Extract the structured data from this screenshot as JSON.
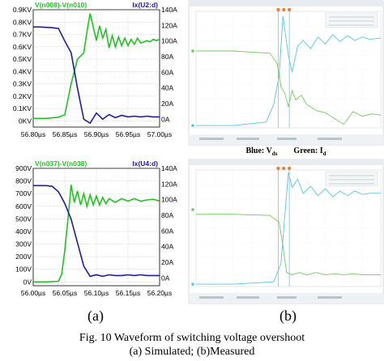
{
  "figure": {
    "sub_a": "(a)",
    "sub_b": "(b)",
    "caption_title": "Fig. 10 Waveform of switching voltage overshoot",
    "caption_sub": "(a) Simulated; (b)Measured",
    "legend_blue_prefix": "Blue: V",
    "legend_blue_sub": "ds",
    "legend_green_prefix": "Green: I",
    "legend_green_sub": "d"
  },
  "colors": {
    "voltage_green": "#1fc31f",
    "current_blue": "#1c1ca8",
    "scope_cyan": "#52c6e8",
    "scope_green": "#74c95a",
    "grid": "#999999"
  },
  "chart_data": [
    {
      "type": "line",
      "panel": "simulated-top",
      "series": [
        {
          "name": "V(n008)-V(n010)",
          "axis": "left",
          "color": "#1fc31f",
          "x": [
            56.8,
            56.82,
            56.84,
            56.85,
            56.86,
            56.87,
            56.88,
            56.885,
            56.89,
            56.9,
            56.905,
            56.91,
            56.915,
            56.92,
            56.925,
            56.93,
            56.935,
            56.94,
            56.945,
            56.95,
            56.955,
            56.96,
            56.965,
            56.97,
            56.975,
            56.98,
            56.985,
            56.99,
            56.995,
            57.0
          ],
          "y": [
            0.02,
            0.02,
            0.03,
            0.05,
            0.3,
            0.5,
            0.55,
            0.72,
            0.87,
            0.65,
            0.77,
            0.67,
            0.74,
            0.59,
            0.69,
            0.6,
            0.68,
            0.61,
            0.67,
            0.61,
            0.66,
            0.62,
            0.67,
            0.63,
            0.64,
            0.65,
            0.64,
            0.66,
            0.65,
            0.66
          ]
        },
        {
          "name": "Ix(U2:d)",
          "axis": "right",
          "color": "#1c1ca8",
          "x": [
            56.8,
            56.81,
            56.83,
            56.84,
            56.85,
            56.86,
            56.87,
            56.88,
            56.89,
            56.9,
            56.91,
            56.92,
            56.93,
            56.94,
            56.95,
            56.96,
            56.97,
            56.98,
            56.99,
            57.0
          ],
          "y": [
            118,
            118,
            117,
            116,
            100,
            85,
            40,
            0,
            -5,
            8,
            0,
            6,
            2,
            5,
            3,
            4,
            3,
            4,
            3,
            3
          ]
        }
      ],
      "x_ticks": [
        "56.80µs",
        "56.85µs",
        "56.90µs",
        "56.95µs",
        "57.00µs"
      ],
      "y_left_ticks": [
        "0KV",
        "0.1KV",
        "0.2KV",
        "0.3KV",
        "0.4KV",
        "0.5KV",
        "0.6KV",
        "0.7KV",
        "0.8KV",
        "0.9KV"
      ],
      "y_right_ticks": [
        "0A",
        "20A",
        "40A",
        "60A",
        "80A",
        "100A",
        "120A",
        "140A"
      ],
      "xlim": [
        56.8,
        57.0
      ],
      "ylim_left": [
        -0.05,
        0.9
      ],
      "ylim_right": [
        -10,
        140
      ],
      "grid": true
    },
    {
      "type": "line",
      "panel": "simulated-bottom",
      "series": [
        {
          "name": "V(n037)-V(n038)",
          "axis": "left",
          "color": "#1fc31f",
          "x": [
            56.0,
            56.02,
            56.04,
            56.045,
            56.05,
            56.055,
            56.06,
            56.065,
            56.07,
            56.075,
            56.08,
            56.085,
            56.09,
            56.095,
            56.1,
            56.105,
            56.11,
            56.115,
            56.12,
            56.13,
            56.14,
            56.15,
            56.16,
            56.17,
            56.18,
            56.19,
            56.2
          ],
          "y": [
            0,
            0,
            5,
            60,
            250,
            500,
            770,
            630,
            720,
            610,
            700,
            600,
            690,
            610,
            680,
            610,
            670,
            620,
            660,
            630,
            660,
            640,
            660,
            640,
            650,
            655,
            640
          ]
        },
        {
          "name": "Ix(U4:d)",
          "axis": "right",
          "color": "#1c1ca8",
          "x": [
            56.0,
            56.02,
            56.03,
            56.04,
            56.05,
            56.06,
            56.07,
            56.08,
            56.09,
            56.1,
            56.11,
            56.12,
            56.13,
            56.14,
            56.15,
            56.16,
            56.17,
            56.18,
            56.19,
            56.2
          ],
          "y": [
            118,
            118,
            117,
            110,
            95,
            75,
            45,
            15,
            2,
            4,
            2,
            4,
            3,
            3,
            4,
            3,
            4,
            3,
            3,
            3
          ]
        }
      ],
      "x_ticks": [
        "56.00µs",
        "56.05µs",
        "56.10µs",
        "56.15µs",
        "56.20µs"
      ],
      "y_left_ticks": [
        "0V",
        "100V",
        "200V",
        "300V",
        "400V",
        "500V",
        "600V",
        "700V",
        "800V",
        "900V"
      ],
      "y_right_ticks": [
        "0A",
        "20A",
        "40A",
        "60A",
        "80A",
        "100A",
        "120A",
        "140A"
      ],
      "xlim": [
        56.0,
        56.2
      ],
      "ylim_left": [
        -30,
        900
      ],
      "ylim_right": [
        -10,
        140
      ],
      "grid": true
    },
    {
      "type": "line",
      "panel": "measured-top",
      "series": [
        {
          "name": "cyan",
          "color": "#52c6e8",
          "x": [
            0,
            0.2,
            0.38,
            0.42,
            0.45,
            0.47,
            0.5,
            0.52,
            0.55,
            0.58,
            0.62,
            0.66,
            0.7,
            0.74,
            0.78,
            0.82,
            0.86,
            0.9,
            0.94,
            1.0
          ],
          "y": [
            0.02,
            0.02,
            0.05,
            0.2,
            0.45,
            0.96,
            0.62,
            0.48,
            0.7,
            0.75,
            0.68,
            0.78,
            0.72,
            0.8,
            0.74,
            0.79,
            0.75,
            0.78,
            0.76,
            0.77
          ]
        },
        {
          "name": "green",
          "color": "#74c95a",
          "x": [
            0,
            0.2,
            0.4,
            0.44,
            0.46,
            0.48,
            0.5,
            0.52,
            0.54,
            0.57,
            0.6,
            0.65,
            0.7,
            0.75,
            0.8,
            0.85,
            0.9,
            0.95,
            1.0
          ],
          "y": [
            0.66,
            0.66,
            0.64,
            0.55,
            0.35,
            0.3,
            0.18,
            0.32,
            0.24,
            0.28,
            0.2,
            0.15,
            0.13,
            0.08,
            0.03,
            0.14,
            0.1,
            0.12,
            0.11
          ]
        }
      ]
    },
    {
      "type": "line",
      "panel": "measured-bottom",
      "series": [
        {
          "name": "cyan",
          "color": "#52c6e8",
          "x": [
            0,
            0.2,
            0.42,
            0.46,
            0.48,
            0.5,
            0.52,
            0.55,
            0.58,
            0.62,
            0.66,
            0.7,
            0.74,
            0.78,
            0.82,
            0.86,
            0.9,
            0.94,
            1.0
          ],
          "y": [
            0.02,
            0.02,
            0.04,
            0.2,
            0.6,
            0.98,
            0.85,
            0.92,
            0.8,
            0.86,
            0.78,
            0.84,
            0.77,
            0.82,
            0.78,
            0.82,
            0.79,
            0.8,
            0.8
          ]
        },
        {
          "name": "green",
          "color": "#74c95a",
          "x": [
            0,
            0.2,
            0.4,
            0.45,
            0.47,
            0.49,
            0.52,
            0.56,
            0.6,
            0.65,
            0.7,
            0.75,
            0.8,
            0.85,
            0.9,
            0.95,
            1.0
          ],
          "y": [
            0.62,
            0.62,
            0.61,
            0.55,
            0.35,
            0.12,
            0.1,
            0.12,
            0.1,
            0.12,
            0.1,
            0.11,
            0.1,
            0.11,
            0.1,
            0.1,
            0.1
          ]
        }
      ]
    }
  ]
}
